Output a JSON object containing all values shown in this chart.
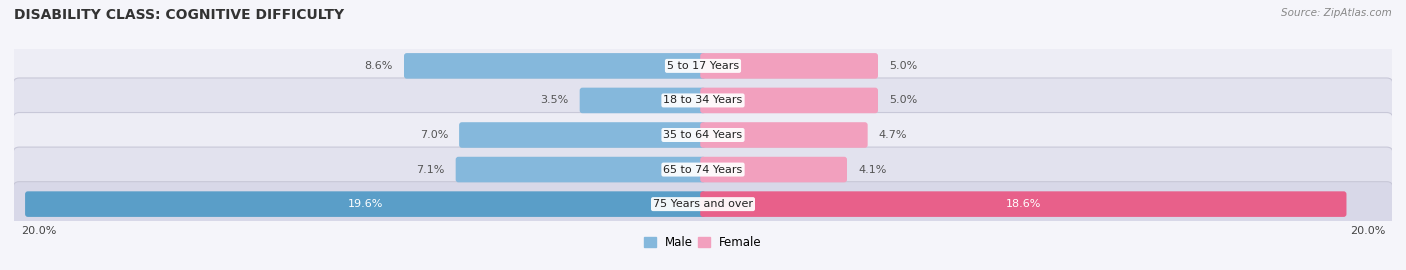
{
  "title": "DISABILITY CLASS: COGNITIVE DIFFICULTY",
  "source": "Source: ZipAtlas.com",
  "categories": [
    "5 to 17 Years",
    "18 to 34 Years",
    "35 to 64 Years",
    "65 to 74 Years",
    "75 Years and over"
  ],
  "male_values": [
    8.6,
    3.5,
    7.0,
    7.1,
    19.6
  ],
  "female_values": [
    5.0,
    5.0,
    4.7,
    4.1,
    18.6
  ],
  "max_val": 20.0,
  "male_color_normal": "#85b8dc",
  "female_color_normal": "#f2a0be",
  "male_color_last": "#5a9ec8",
  "female_color_last": "#e8608a",
  "row_bg_color_odd": "#ededf5",
  "row_bg_color_even": "#e2e2ee",
  "row_bg_color_last": "#d8d8e8",
  "label_color_outside": "#555555",
  "label_color_inside": "#ffffff",
  "axis_label_left": "20.0%",
  "axis_label_right": "20.0%",
  "legend_male": "Male",
  "legend_female": "Female",
  "title_fontsize": 10,
  "label_fontsize": 8,
  "category_fontsize": 8
}
